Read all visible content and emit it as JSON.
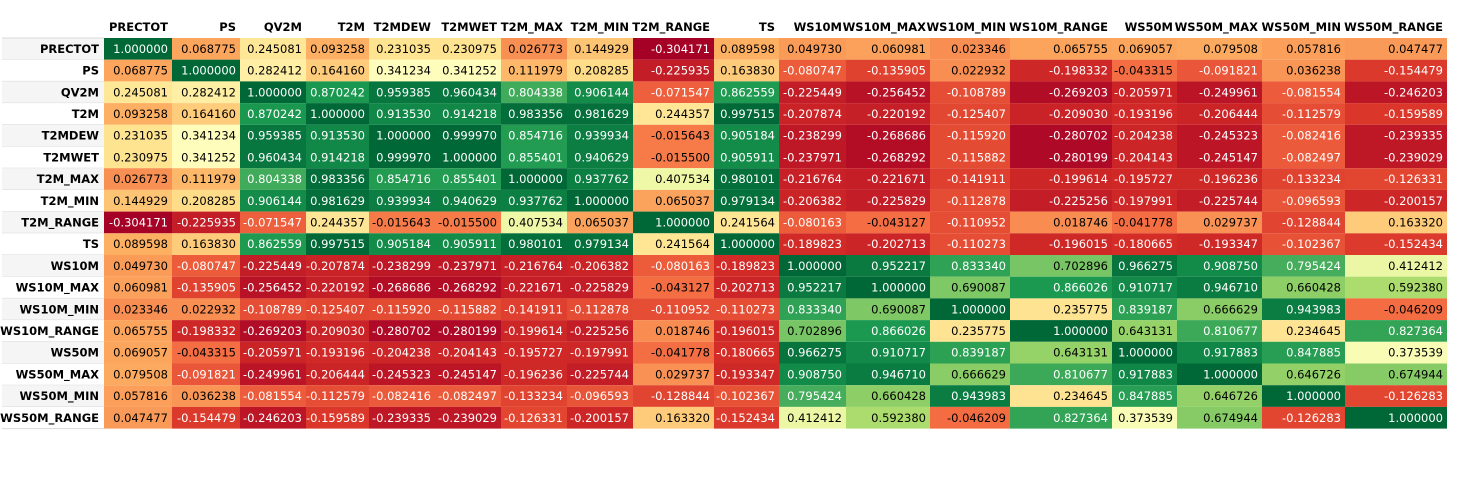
{
  "chart_data": {
    "type": "heatmap",
    "columns": [
      "PRECTOT",
      "PS",
      "QV2M",
      "T2M",
      "T2MDEW",
      "T2MWET",
      "T2M_MAX",
      "T2M_MIN",
      "T2M_RANGE",
      "TS",
      "WS10M",
      "WS10M_MAX",
      "WS10M_MIN",
      "WS10M_RANGE",
      "WS50M",
      "WS50M_MAX",
      "WS50M_MIN",
      "WS50M_RANGE"
    ],
    "rows": [
      "PRECTOT",
      "PS",
      "QV2M",
      "T2M",
      "T2MDEW",
      "T2MWET",
      "T2M_MAX",
      "T2M_MIN",
      "T2M_RANGE",
      "TS",
      "WS10M",
      "WS10M_MAX",
      "WS10M_MIN",
      "WS10M_RANGE",
      "WS50M",
      "WS50M_MAX",
      "WS50M_MIN",
      "WS50M_RANGE"
    ],
    "values": [
      [
        "1.000000",
        "0.068775",
        "0.245081",
        "0.093258",
        "0.231035",
        "0.230975",
        "0.026773",
        "0.144929",
        "-0.304171",
        "0.089598",
        "0.049730",
        "0.060981",
        "0.023346",
        "0.065755",
        "0.069057",
        "0.079508",
        "0.057816",
        "0.047477"
      ],
      [
        "0.068775",
        "1.000000",
        "0.282412",
        "0.164160",
        "0.341234",
        "0.341252",
        "0.111979",
        "0.208285",
        "-0.225935",
        "0.163830",
        "-0.080747",
        "-0.135905",
        "0.022932",
        "-0.198332",
        "-0.043315",
        "-0.091821",
        "0.036238",
        "-0.154479"
      ],
      [
        "0.245081",
        "0.282412",
        "1.000000",
        "0.870242",
        "0.959385",
        "0.960434",
        "0.804338",
        "0.906144",
        "-0.071547",
        "0.862559",
        "-0.225449",
        "-0.256452",
        "-0.108789",
        "-0.269203",
        "-0.205971",
        "-0.249961",
        "-0.081554",
        "-0.246203"
      ],
      [
        "0.093258",
        "0.164160",
        "0.870242",
        "1.000000",
        "0.913530",
        "0.914218",
        "0.983356",
        "0.981629",
        "0.244357",
        "0.997515",
        "-0.207874",
        "-0.220192",
        "-0.125407",
        "-0.209030",
        "-0.193196",
        "-0.206444",
        "-0.112579",
        "-0.159589"
      ],
      [
        "0.231035",
        "0.341234",
        "0.959385",
        "0.913530",
        "1.000000",
        "0.999970",
        "0.854716",
        "0.939934",
        "-0.015643",
        "0.905184",
        "-0.238299",
        "-0.268686",
        "-0.115920",
        "-0.280702",
        "-0.204238",
        "-0.245323",
        "-0.082416",
        "-0.239335"
      ],
      [
        "0.230975",
        "0.341252",
        "0.960434",
        "0.914218",
        "0.999970",
        "1.000000",
        "0.855401",
        "0.940629",
        "-0.015500",
        "0.905911",
        "-0.237971",
        "-0.268292",
        "-0.115882",
        "-0.280199",
        "-0.204143",
        "-0.245147",
        "-0.082497",
        "-0.239029"
      ],
      [
        "0.026773",
        "0.111979",
        "0.804338",
        "0.983356",
        "0.854716",
        "0.855401",
        "1.000000",
        "0.937762",
        "0.407534",
        "0.980101",
        "-0.216764",
        "-0.221671",
        "-0.141911",
        "-0.199614",
        "-0.195727",
        "-0.196236",
        "-0.133234",
        "-0.126331"
      ],
      [
        "0.144929",
        "0.208285",
        "0.906144",
        "0.981629",
        "0.939934",
        "0.940629",
        "0.937762",
        "1.000000",
        "0.065037",
        "0.979134",
        "-0.206382",
        "-0.225829",
        "-0.112878",
        "-0.225256",
        "-0.197991",
        "-0.225744",
        "-0.096593",
        "-0.200157"
      ],
      [
        "-0.304171",
        "-0.225935",
        "-0.071547",
        "0.244357",
        "-0.015643",
        "-0.015500",
        "0.407534",
        "0.065037",
        "1.000000",
        "0.241564",
        "-0.080163",
        "-0.043127",
        "-0.110952",
        "0.018746",
        "-0.041778",
        "0.029737",
        "-0.128844",
        "0.163320"
      ],
      [
        "0.089598",
        "0.163830",
        "0.862559",
        "0.997515",
        "0.905184",
        "0.905911",
        "0.980101",
        "0.979134",
        "0.241564",
        "1.000000",
        "-0.189823",
        "-0.202713",
        "-0.110273",
        "-0.196015",
        "-0.180665",
        "-0.193347",
        "-0.102367",
        "-0.152434"
      ],
      [
        "0.049730",
        "-0.080747",
        "-0.225449",
        "-0.207874",
        "-0.238299",
        "-0.237971",
        "-0.216764",
        "-0.206382",
        "-0.080163",
        "-0.189823",
        "1.000000",
        "0.952217",
        "0.833340",
        "0.702896",
        "0.966275",
        "0.908750",
        "0.795424",
        "0.412412"
      ],
      [
        "0.060981",
        "-0.135905",
        "-0.256452",
        "-0.220192",
        "-0.268686",
        "-0.268292",
        "-0.221671",
        "-0.225829",
        "-0.043127",
        "-0.202713",
        "0.952217",
        "1.000000",
        "0.690087",
        "0.866026",
        "0.910717",
        "0.946710",
        "0.660428",
        "0.592380"
      ],
      [
        "0.023346",
        "0.022932",
        "-0.108789",
        "-0.125407",
        "-0.115920",
        "-0.115882",
        "-0.141911",
        "-0.112878",
        "-0.110952",
        "-0.110273",
        "0.833340",
        "0.690087",
        "1.000000",
        "0.235775",
        "0.839187",
        "0.666629",
        "0.943983",
        "-0.046209"
      ],
      [
        "0.065755",
        "-0.198332",
        "-0.269203",
        "-0.209030",
        "-0.280702",
        "-0.280199",
        "-0.199614",
        "-0.225256",
        "0.018746",
        "-0.196015",
        "0.702896",
        "0.866026",
        "0.235775",
        "1.000000",
        "0.643131",
        "0.810677",
        "0.234645",
        "0.827364"
      ],
      [
        "0.069057",
        "-0.043315",
        "-0.205971",
        "-0.193196",
        "-0.204238",
        "-0.204143",
        "-0.195727",
        "-0.197991",
        "-0.041778",
        "-0.180665",
        "0.966275",
        "0.910717",
        "0.839187",
        "0.643131",
        "1.000000",
        "0.917883",
        "0.847885",
        "0.373539"
      ],
      [
        "0.079508",
        "-0.091821",
        "-0.249961",
        "-0.206444",
        "-0.245323",
        "-0.245147",
        "-0.196236",
        "-0.225744",
        "0.029737",
        "-0.193347",
        "0.908750",
        "0.946710",
        "0.666629",
        "0.810677",
        "0.917883",
        "1.000000",
        "0.646726",
        "0.674944"
      ],
      [
        "0.057816",
        "0.036238",
        "-0.081554",
        "-0.112579",
        "-0.082416",
        "-0.082497",
        "-0.133234",
        "-0.096593",
        "-0.128844",
        "-0.102367",
        "0.795424",
        "0.660428",
        "0.943983",
        "0.234645",
        "0.847885",
        "0.646726",
        "1.000000",
        "-0.126283"
      ],
      [
        "0.047477",
        "-0.154479",
        "-0.246203",
        "-0.159589",
        "-0.239335",
        "-0.239029",
        "-0.126331",
        "-0.200157",
        "0.163320",
        "-0.152434",
        "0.412412",
        "0.592380",
        "-0.046209",
        "0.827364",
        "0.373539",
        "0.674944",
        "-0.126283",
        "1.000000"
      ]
    ],
    "colormap": "RdYlGn",
    "value_range": [
      -0.304171,
      1.0
    ]
  }
}
